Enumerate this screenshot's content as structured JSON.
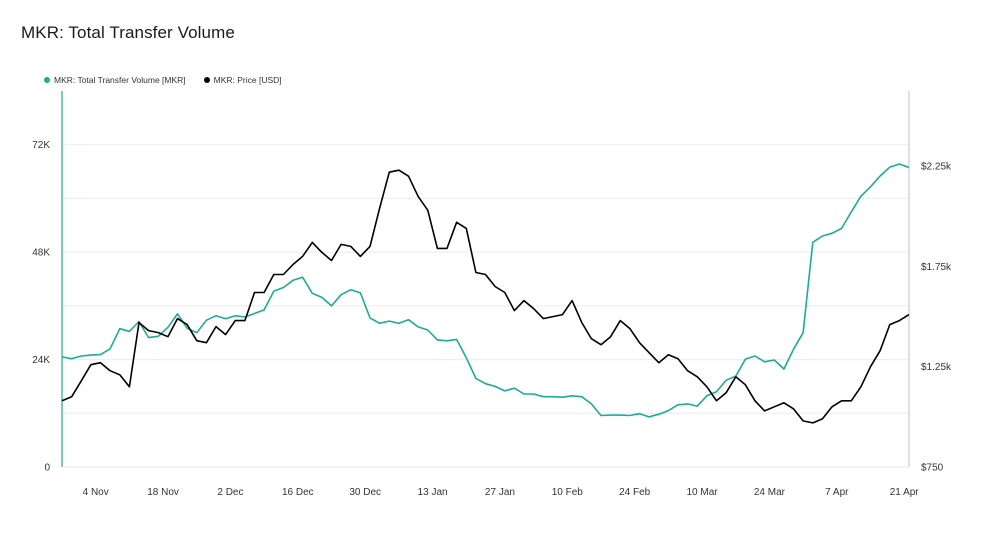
{
  "title": "MKR: Total Transfer Volume",
  "colors": {
    "volume": "#1faa96",
    "price": "#000000",
    "grid": "#ebebeb"
  },
  "chart_data": {
    "type": "line",
    "title": "MKR: Total Transfer Volume",
    "x_ticks": [
      "4 Nov",
      "18 Nov",
      "2 Dec",
      "16 Dec",
      "30 Dec",
      "13 Jan",
      "27 Jan",
      "10 Feb",
      "24 Feb",
      "10 Mar",
      "24 Mar",
      "7 Apr",
      "21 Apr"
    ],
    "y_left": {
      "ticks": [
        "0",
        "24K",
        "48K",
        "72K"
      ],
      "values": [
        0,
        24000,
        48000,
        72000
      ],
      "range": [
        0,
        84000
      ]
    },
    "y_right": {
      "ticks": [
        "$750",
        "$1.25k",
        "$1.75k",
        "$2.25k"
      ],
      "values": [
        750,
        1250,
        1750,
        2250
      ],
      "range": [
        750,
        2625
      ]
    },
    "x_range": [
      -7,
      169
    ],
    "grid": true,
    "legend": "top-left",
    "series": [
      {
        "name": "MKR: Total Transfer Volume [MKR]",
        "axis": "left",
        "points": [
          [
            -7,
            24600
          ],
          [
            -5,
            24200
          ],
          [
            -3,
            24800
          ],
          [
            -1,
            25000
          ],
          [
            1,
            25100
          ],
          [
            3,
            26400
          ],
          [
            5,
            30900
          ],
          [
            7,
            30300
          ],
          [
            9,
            32500
          ],
          [
            11,
            28900
          ],
          [
            13,
            29200
          ],
          [
            15,
            31200
          ],
          [
            17,
            34200
          ],
          [
            19,
            31000
          ],
          [
            21,
            30000
          ],
          [
            23,
            32800
          ],
          [
            25,
            33800
          ],
          [
            27,
            33100
          ],
          [
            29,
            33800
          ],
          [
            31,
            33500
          ],
          [
            33,
            34300
          ],
          [
            35,
            35100
          ],
          [
            37,
            39300
          ],
          [
            39,
            40100
          ],
          [
            41,
            41700
          ],
          [
            43,
            42400
          ],
          [
            45,
            38800
          ],
          [
            47,
            37900
          ],
          [
            49,
            36000
          ],
          [
            51,
            38500
          ],
          [
            53,
            39600
          ],
          [
            55,
            38900
          ],
          [
            57,
            33300
          ],
          [
            59,
            32100
          ],
          [
            61,
            32600
          ],
          [
            63,
            32100
          ],
          [
            65,
            32900
          ],
          [
            67,
            31300
          ],
          [
            69,
            30600
          ],
          [
            71,
            28400
          ],
          [
            73,
            28200
          ],
          [
            75,
            28500
          ],
          [
            77,
            24400
          ],
          [
            79,
            19800
          ],
          [
            81,
            18600
          ],
          [
            83,
            18000
          ],
          [
            85,
            17000
          ],
          [
            87,
            17600
          ],
          [
            89,
            16300
          ],
          [
            91,
            16300
          ],
          [
            93,
            15700
          ],
          [
            95,
            15700
          ],
          [
            97,
            15600
          ],
          [
            99,
            15900
          ],
          [
            101,
            15700
          ],
          [
            103,
            14100
          ],
          [
            105,
            11500
          ],
          [
            107,
            11600
          ],
          [
            109,
            11600
          ],
          [
            111,
            11500
          ],
          [
            113,
            11900
          ],
          [
            115,
            11200
          ],
          [
            117,
            11800
          ],
          [
            119,
            12600
          ],
          [
            121,
            13900
          ],
          [
            123,
            14100
          ],
          [
            125,
            13600
          ],
          [
            127,
            15900
          ],
          [
            129,
            16800
          ],
          [
            131,
            19400
          ],
          [
            133,
            20300
          ],
          [
            135,
            24100
          ],
          [
            137,
            24800
          ],
          [
            139,
            23500
          ],
          [
            141,
            23900
          ],
          [
            143,
            21900
          ],
          [
            145,
            26300
          ],
          [
            147,
            30000
          ],
          [
            149,
            50200
          ],
          [
            151,
            51600
          ],
          [
            153,
            52200
          ],
          [
            155,
            53300
          ],
          [
            157,
            57000
          ],
          [
            159,
            60500
          ],
          [
            161,
            62600
          ],
          [
            163,
            65000
          ],
          [
            165,
            67000
          ],
          [
            167,
            67700
          ],
          [
            169,
            66900
          ]
        ]
      },
      {
        "name": "MKR: Price [USD]",
        "axis": "right",
        "points": [
          [
            -7,
            1080
          ],
          [
            -5,
            1100
          ],
          [
            -3,
            1180
          ],
          [
            -1,
            1260
          ],
          [
            1,
            1270
          ],
          [
            3,
            1230
          ],
          [
            5,
            1210
          ],
          [
            7,
            1150
          ],
          [
            9,
            1470
          ],
          [
            11,
            1430
          ],
          [
            13,
            1420
          ],
          [
            15,
            1400
          ],
          [
            17,
            1490
          ],
          [
            19,
            1460
          ],
          [
            21,
            1380
          ],
          [
            23,
            1370
          ],
          [
            25,
            1450
          ],
          [
            27,
            1410
          ],
          [
            29,
            1480
          ],
          [
            31,
            1480
          ],
          [
            33,
            1620
          ],
          [
            35,
            1620
          ],
          [
            37,
            1710
          ],
          [
            39,
            1710
          ],
          [
            41,
            1760
          ],
          [
            43,
            1800
          ],
          [
            45,
            1870
          ],
          [
            47,
            1820
          ],
          [
            49,
            1780
          ],
          [
            51,
            1860
          ],
          [
            53,
            1850
          ],
          [
            55,
            1800
          ],
          [
            57,
            1850
          ],
          [
            59,
            2040
          ],
          [
            61,
            2220
          ],
          [
            63,
            2230
          ],
          [
            65,
            2200
          ],
          [
            67,
            2100
          ],
          [
            69,
            2030
          ],
          [
            71,
            1840
          ],
          [
            73,
            1840
          ],
          [
            75,
            1970
          ],
          [
            77,
            1940
          ],
          [
            79,
            1720
          ],
          [
            81,
            1710
          ],
          [
            83,
            1650
          ],
          [
            85,
            1620
          ],
          [
            87,
            1530
          ],
          [
            89,
            1580
          ],
          [
            91,
            1540
          ],
          [
            93,
            1490
          ],
          [
            95,
            1500
          ],
          [
            97,
            1510
          ],
          [
            99,
            1580
          ],
          [
            101,
            1470
          ],
          [
            103,
            1390
          ],
          [
            105,
            1360
          ],
          [
            107,
            1400
          ],
          [
            109,
            1480
          ],
          [
            111,
            1440
          ],
          [
            113,
            1370
          ],
          [
            115,
            1320
          ],
          [
            117,
            1270
          ],
          [
            119,
            1310
          ],
          [
            121,
            1290
          ],
          [
            123,
            1230
          ],
          [
            125,
            1200
          ],
          [
            127,
            1150
          ],
          [
            129,
            1080
          ],
          [
            131,
            1120
          ],
          [
            133,
            1200
          ],
          [
            135,
            1160
          ],
          [
            137,
            1080
          ],
          [
            139,
            1030
          ],
          [
            141,
            1050
          ],
          [
            143,
            1070
          ],
          [
            145,
            1040
          ],
          [
            147,
            980
          ],
          [
            149,
            970
          ],
          [
            151,
            990
          ],
          [
            153,
            1050
          ],
          [
            155,
            1080
          ],
          [
            157,
            1080
          ],
          [
            159,
            1150
          ],
          [
            161,
            1250
          ],
          [
            163,
            1330
          ],
          [
            165,
            1460
          ],
          [
            167,
            1480
          ],
          [
            169,
            1510
          ]
        ]
      }
    ]
  }
}
